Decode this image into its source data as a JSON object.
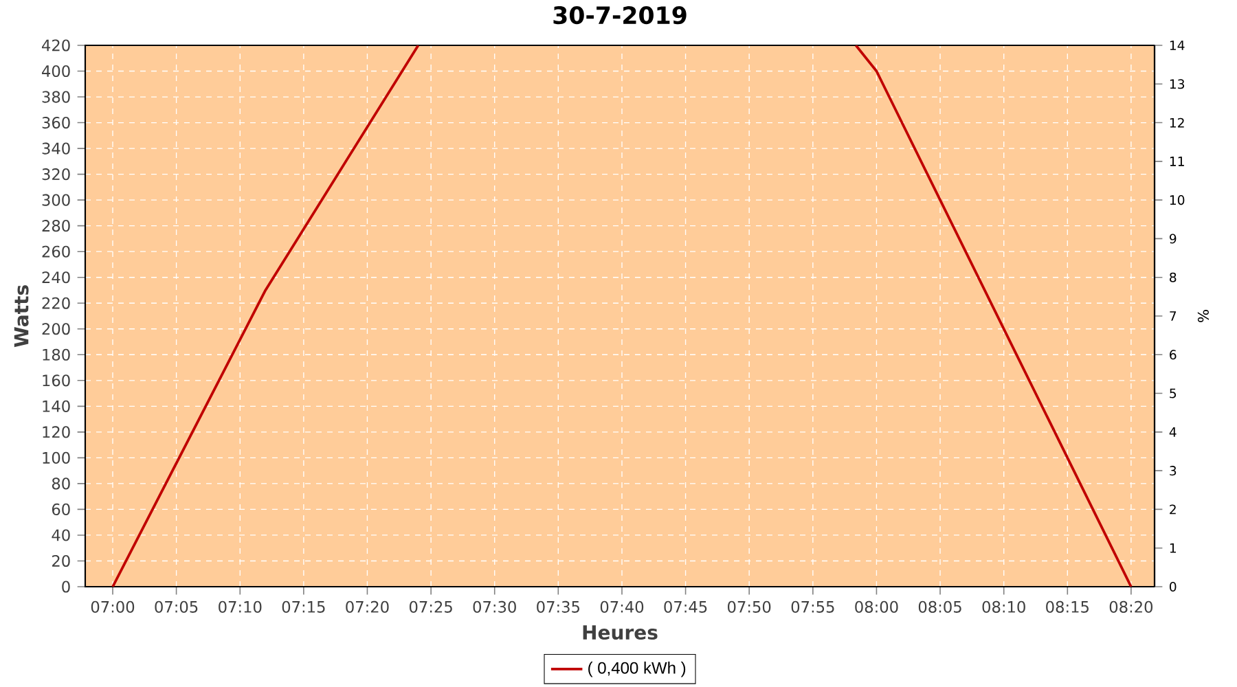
{
  "chart_data": {
    "type": "line",
    "title": "30-7-2019",
    "xlabel": "Heures",
    "ylabel": "Watts",
    "y2label": "%",
    "x": [
      7.0,
      7.2,
      7.4,
      7.7,
      7.973,
      8.0,
      8.3333
    ],
    "series": [
      {
        "name": "( 0,400 kWh )",
        "color": "#c00000",
        "values": [
          0,
          230,
          420,
          null,
          420,
          400,
          0
        ]
      }
    ],
    "xlim": [
      6.964,
      8.364
    ],
    "xticks": [
      {
        "value": 7.0,
        "label": "07:00"
      },
      {
        "value": 7.0833,
        "label": "07:05"
      },
      {
        "value": 7.1667,
        "label": "07:10"
      },
      {
        "value": 7.25,
        "label": "07:15"
      },
      {
        "value": 7.3333,
        "label": "07:20"
      },
      {
        "value": 7.4167,
        "label": "07:25"
      },
      {
        "value": 7.5,
        "label": "07:30"
      },
      {
        "value": 7.5833,
        "label": "07:35"
      },
      {
        "value": 7.6667,
        "label": "07:40"
      },
      {
        "value": 7.75,
        "label": "07:45"
      },
      {
        "value": 7.8333,
        "label": "07:50"
      },
      {
        "value": 7.9167,
        "label": "07:55"
      },
      {
        "value": 8.0,
        "label": "08:00"
      },
      {
        "value": 8.0833,
        "label": "08:05"
      },
      {
        "value": 8.1667,
        "label": "08:10"
      },
      {
        "value": 8.25,
        "label": "08:15"
      },
      {
        "value": 8.3333,
        "label": "08:20"
      }
    ],
    "ylim": [
      0,
      420
    ],
    "yticks": [
      0,
      20,
      40,
      60,
      80,
      100,
      120,
      140,
      160,
      180,
      200,
      220,
      240,
      260,
      280,
      300,
      320,
      340,
      360,
      380,
      400,
      420
    ],
    "y2lim": [
      0,
      14
    ],
    "y2ticks": [
      0,
      1,
      2,
      3,
      4,
      5,
      6,
      7,
      8,
      9,
      10,
      11,
      12,
      13,
      14
    ],
    "grid": true,
    "legend": "bottom",
    "line_style": "solid"
  }
}
